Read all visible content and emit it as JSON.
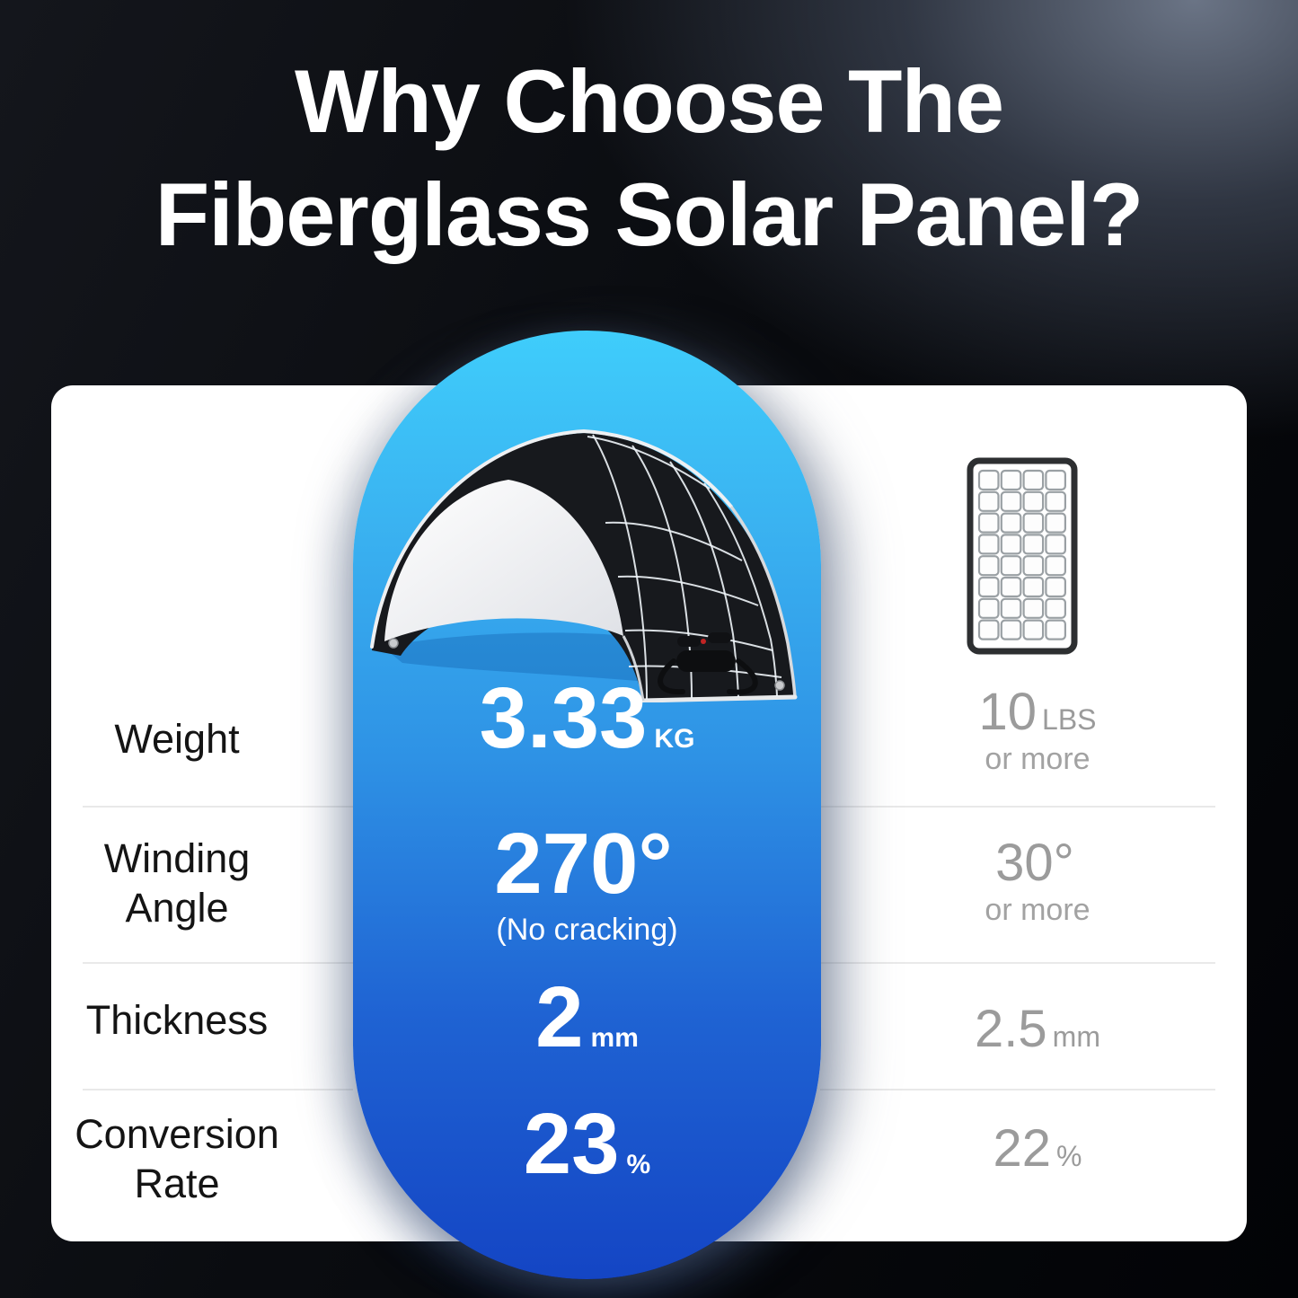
{
  "title": {
    "line1": "Why Choose The",
    "line2": "Fiberglass Solar Panel?"
  },
  "products": {
    "flexible": {
      "image_icon": "flexible-solar-panel-bent-into-arch"
    },
    "rigid": {
      "image_icon": "rigid-solar-panel-grid-outline"
    }
  },
  "rows": [
    {
      "label": "Weight",
      "flexible": {
        "value": "3.33",
        "unit": "KG",
        "note": ""
      },
      "rigid": {
        "value": "10",
        "unit": "LBS",
        "note": "or more"
      }
    },
    {
      "label": "Winding Angle",
      "flexible": {
        "value": "270°",
        "unit": "",
        "note": "(No cracking)"
      },
      "rigid": {
        "value": "30°",
        "unit": "",
        "note": "or more"
      }
    },
    {
      "label": "Thickness",
      "flexible": {
        "value": "2",
        "unit": "mm",
        "note": ""
      },
      "rigid": {
        "value": "2.5",
        "unit": "mm",
        "note": ""
      }
    },
    {
      "label": "Conversion Rate",
      "flexible": {
        "value": "23",
        "unit": "%",
        "note": ""
      },
      "rigid": {
        "value": "22",
        "unit": "%",
        "note": ""
      }
    }
  ],
  "colors": {
    "pill_gradient_top": "#3fcdfb",
    "pill_gradient_bottom": "#1445c4",
    "card_background": "#ffffff",
    "page_background_dark": "#05060a",
    "page_background_highlight": "#5a6474",
    "title_text": "#ffffff",
    "label_text": "#141414",
    "rigid_value_text": "#9b9b9b",
    "divider": "#e9e9e9"
  }
}
